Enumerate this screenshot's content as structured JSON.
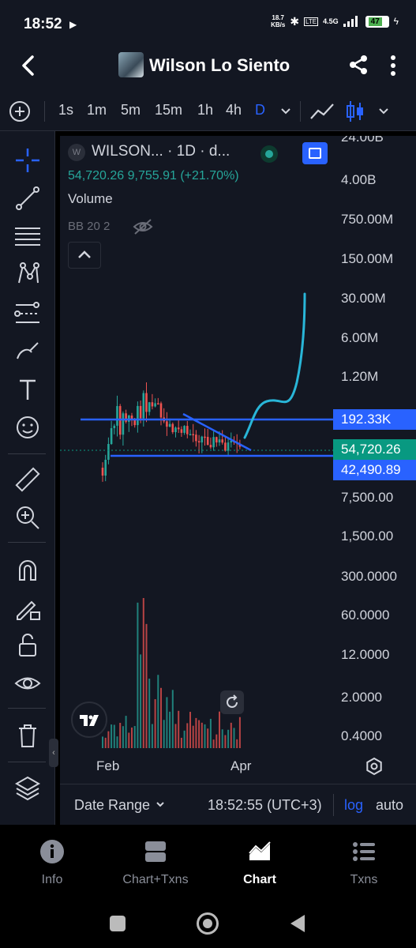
{
  "status_bar": {
    "time": "18:52",
    "speed_value": "18.7",
    "speed_unit": "KB/s",
    "network": "4.5G",
    "battery": "47"
  },
  "header": {
    "title": "Wilson Lo Siento"
  },
  "toolbar": {
    "timeframes": [
      "1s",
      "1m",
      "5m",
      "15m",
      "1h",
      "4h",
      "D"
    ],
    "active_timeframe": "D"
  },
  "chart": {
    "legend_title": "WILSON... · 1D · d...",
    "legend_logo": "W",
    "ohlc": "54,720.26  9,755.91 (+21.70%)",
    "volume_label": "Volume",
    "bb_label": "BB 20 2",
    "price_axis": [
      "24.00B",
      "4.00B",
      "750.00M",
      "150.00M",
      "30.00M",
      "6.00M",
      "1.20M",
      "7,500.00",
      "1,500.00",
      "300.0000",
      "60.0000",
      "12.0000",
      "2.0000",
      "0.4000"
    ],
    "price_tags": {
      "resistance": "192.33K",
      "current": "54,720.26",
      "support": "42,490.89"
    },
    "time_axis": [
      "Feb",
      "Apr"
    ],
    "colors": {
      "up": "#26a69a",
      "down": "#ef5350",
      "line": "#2962ff",
      "projection": "#29b6d8",
      "current_tag": "#089981"
    }
  },
  "footer": {
    "date_range": "Date Range",
    "clock": "18:52:55 (UTC+3)",
    "log": "log",
    "auto": "auto"
  },
  "bottom_nav": [
    {
      "label": "Info",
      "icon": "info-icon"
    },
    {
      "label": "Chart+Txns",
      "icon": "split-view-icon"
    },
    {
      "label": "Chart",
      "icon": "area-chart-icon",
      "active": true
    },
    {
      "label": "Txns",
      "icon": "list-icon"
    }
  ]
}
